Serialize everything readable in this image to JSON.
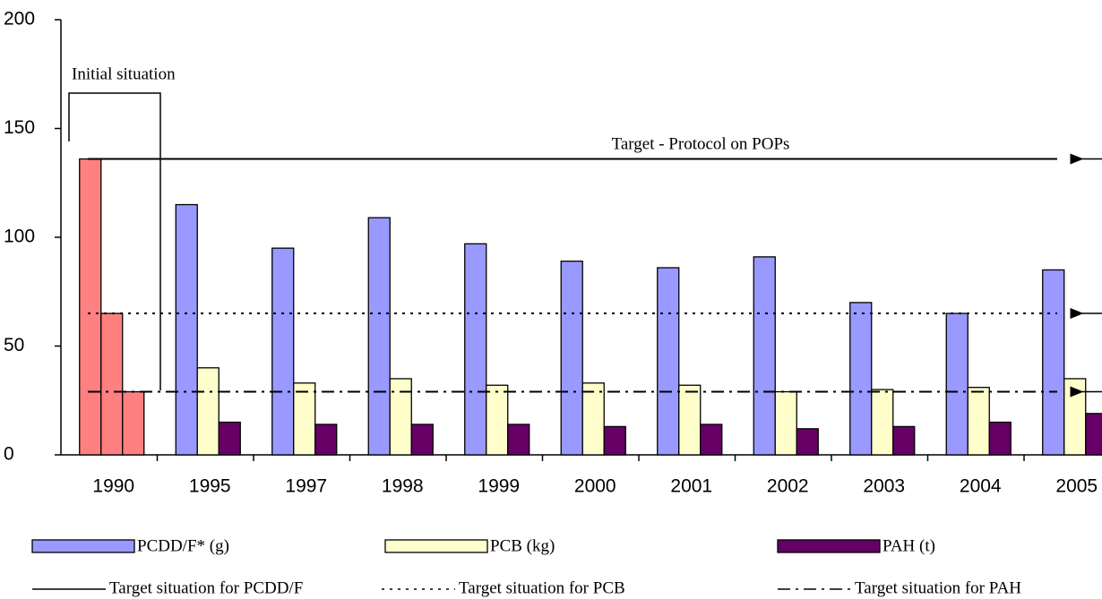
{
  "chart_data": {
    "type": "bar",
    "categories": [
      "1990",
      "1995",
      "1997",
      "1998",
      "1999",
      "2000",
      "2001",
      "2002",
      "2003",
      "2004",
      "2005"
    ],
    "series": [
      {
        "name": "PCDD/F* (g)",
        "color": "#9999ff",
        "values": [
          136,
          115,
          95,
          109,
          97,
          89,
          86,
          91,
          70,
          65,
          85
        ]
      },
      {
        "name": "PCB (kg)",
        "color": "#ffffcc",
        "values": [
          65,
          40,
          33,
          35,
          32,
          33,
          32,
          29,
          30,
          31,
          35
        ]
      },
      {
        "name": "PAH (t)",
        "color": "#660066",
        "values": [
          29,
          15,
          14,
          14,
          14,
          13,
          14,
          12,
          13,
          15,
          19
        ]
      }
    ],
    "highlight_category": "1990",
    "highlight_color": "#ff8080",
    "target_lines": [
      {
        "name": "Target situation for PCDD/F",
        "value": 136,
        "style": "solid"
      },
      {
        "name": "Target situation for PCB",
        "value": 65,
        "style": "dotted"
      },
      {
        "name": "Target situation for PAH",
        "value": 29,
        "style": "dashdot"
      }
    ],
    "annotations": [
      "Initial situation",
      "Target - Protocol on POPs"
    ],
    "ylim": [
      0,
      200
    ],
    "yticks": [
      0,
      50,
      100,
      150,
      200
    ]
  }
}
